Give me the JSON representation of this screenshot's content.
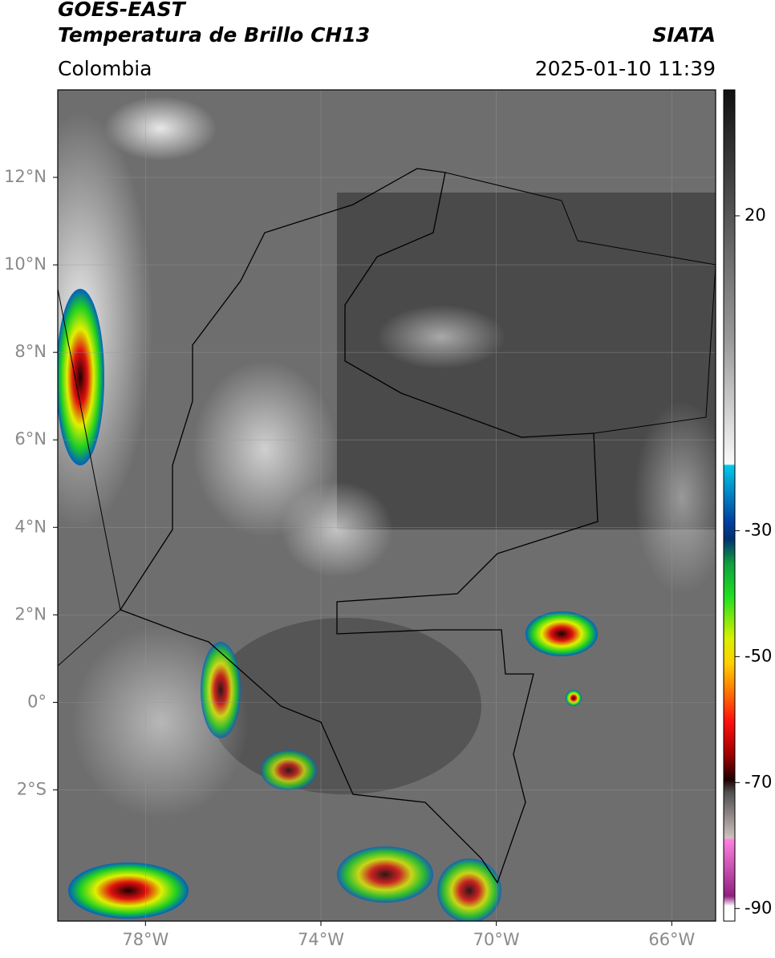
{
  "header": {
    "title": "GOES-EAST",
    "subtitle": "Temperatura de Brillo CH13",
    "source": "SIATA",
    "region": "Colombia",
    "datetime": "2025-01-10 11:39"
  },
  "map": {
    "xlim": [
      -80,
      -65
    ],
    "ylim": [
      -5,
      14
    ],
    "xticks": [
      {
        "value": -78,
        "label": "78°W"
      },
      {
        "value": -74,
        "label": "74°W"
      },
      {
        "value": -70,
        "label": "70°W"
      },
      {
        "value": -66,
        "label": "66°W"
      }
    ],
    "yticks": [
      {
        "value": 12,
        "label": "12°N"
      },
      {
        "value": 10,
        "label": "10°N"
      },
      {
        "value": 8,
        "label": "8°N"
      },
      {
        "value": 6,
        "label": "6°N"
      },
      {
        "value": 4,
        "label": "4°N"
      },
      {
        "value": 2,
        "label": "2°N"
      },
      {
        "value": 0,
        "label": "0°"
      },
      {
        "value": -2,
        "label": "2°S"
      }
    ]
  },
  "colorbar": {
    "range": [
      -92,
      40
    ],
    "ticks": [
      20,
      -30,
      -50,
      -70,
      -90
    ]
  }
}
